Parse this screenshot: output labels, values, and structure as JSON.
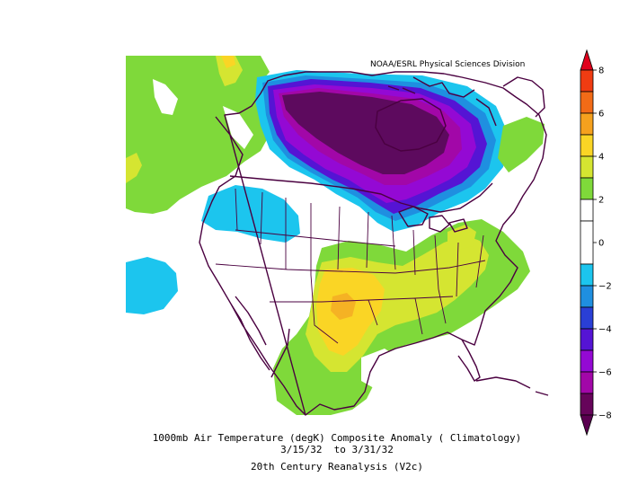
{
  "credit": "NOAA/ESRL Physical Sciences Division",
  "caption": {
    "line1": "1000mb Air Temperature (degK) Composite Anomaly ( Climatology)",
    "line2": "3/15/32  to 3/31/32",
    "line3": "20th Century Reanalysis (V2c)"
  },
  "colorbar": {
    "levels": [
      {
        "lo": 7,
        "hi": 8,
        "color": "#f03c12"
      },
      {
        "lo": 6,
        "hi": 7,
        "color": "#f26b17"
      },
      {
        "lo": 5,
        "hi": 6,
        "color": "#f5a11e"
      },
      {
        "lo": 4,
        "hi": 5,
        "color": "#fad525"
      },
      {
        "lo": 3,
        "hi": 4,
        "color": "#d5e531"
      },
      {
        "lo": 2,
        "hi": 3,
        "color": "#7fd93a"
      },
      {
        "lo": 1,
        "hi": 2,
        "color": "#ffffff"
      },
      {
        "lo": -1,
        "hi": 1,
        "color": "#ffffff"
      },
      {
        "lo": -2,
        "hi": -1,
        "color": "#1cc5ee"
      },
      {
        "lo": -3,
        "hi": -2,
        "color": "#1f8fe0"
      },
      {
        "lo": -4,
        "hi": -3,
        "color": "#2a3fd6"
      },
      {
        "lo": -5,
        "hi": -4,
        "color": "#5514d4"
      },
      {
        "lo": -6,
        "hi": -5,
        "color": "#9409d4"
      },
      {
        "lo": -7,
        "hi": -6,
        "color": "#a207a8"
      },
      {
        "lo": -8,
        "hi": -7,
        "color": "#66045a"
      }
    ],
    "ticks": [
      "8",
      "6",
      "4",
      "2",
      "0",
      "−2",
      "−4",
      "−6",
      "−8"
    ],
    "arrow_top_color": "#e0001c",
    "arrow_bottom_color": "#5a0050"
  },
  "map": {
    "projection": "polar stereographic",
    "region": "North America",
    "land_outline_color": "#4a0040",
    "anomaly_colors": {
      "cold_core": "#5d0a5e",
      "very_cold": "#8d0c9e",
      "cold": "#5a1adc",
      "cool": "#1cc5ee",
      "neutral": "#ffffff",
      "warm": "#7fd93a",
      "warmer": "#c9e32e",
      "hot": "#fad525",
      "hottest": "#f5b224"
    }
  }
}
